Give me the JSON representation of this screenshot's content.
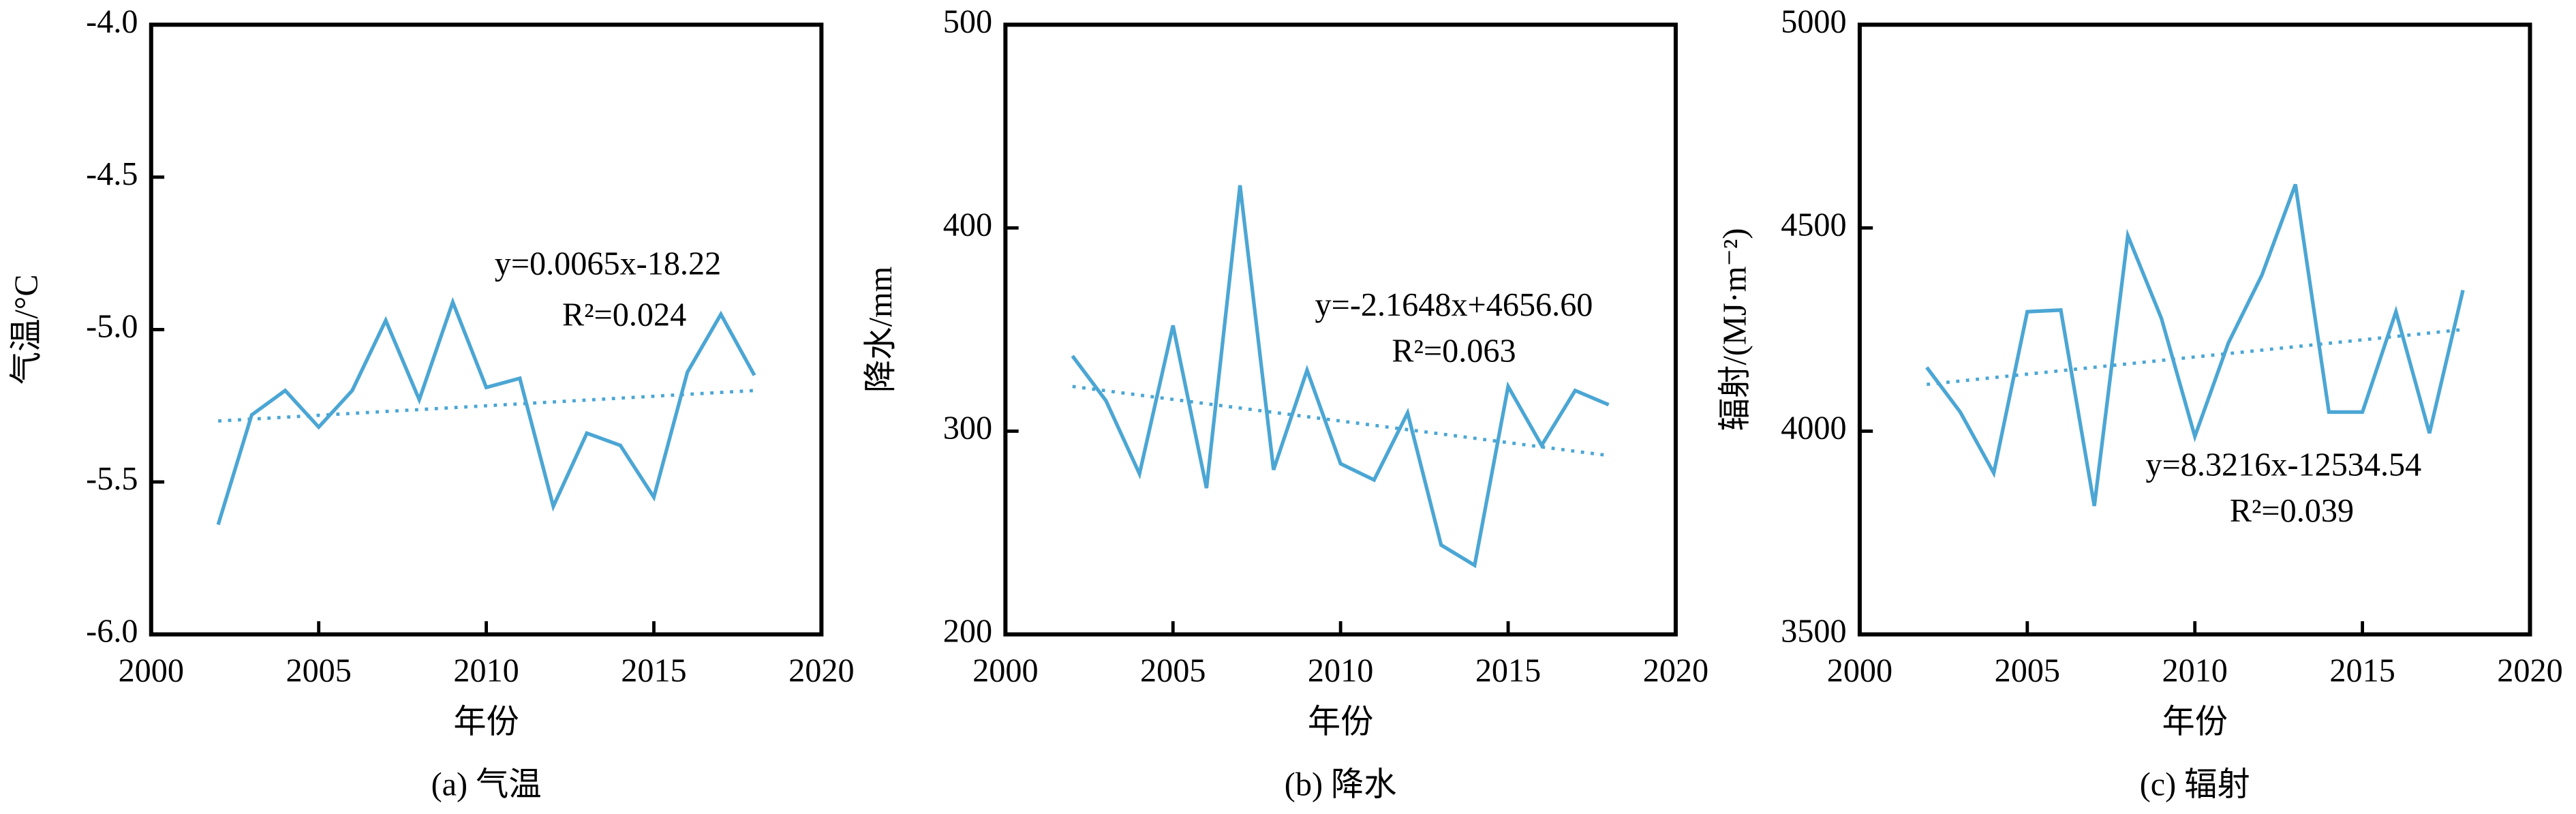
{
  "chart_data": [
    {
      "type": "line",
      "title": "(a) 气温",
      "xlabel": "年份",
      "ylabel": "气温/°C",
      "x": [
        2002,
        2003,
        2004,
        2005,
        2006,
        2007,
        2008,
        2009,
        2010,
        2011,
        2012,
        2013,
        2014,
        2015,
        2016,
        2017,
        2018
      ],
      "series": [
        {
          "color": "#4ba6d4",
          "values": [
            -5.64,
            -5.28,
            -5.2,
            -5.32,
            -5.2,
            -4.97,
            -5.23,
            -4.91,
            -5.19,
            -5.16,
            -5.58,
            -5.34,
            -5.38,
            -5.55,
            -5.14,
            -4.95,
            -5.15
          ]
        }
      ],
      "trend": {
        "color": "#4ba6d4",
        "x": [
          2002,
          2018
        ],
        "values": [
          -5.3,
          -5.2
        ]
      },
      "annotations": [
        "y=0.0065x-18.22",
        "R²=0.024"
      ],
      "xlim": [
        2000,
        2020
      ],
      "xticks": [
        2000,
        2005,
        2010,
        2015,
        2020
      ],
      "ylim": [
        -6,
        -4
      ],
      "yticks": [
        {
          "value": -6,
          "label": "-6.0"
        },
        {
          "value": -5.5,
          "label": "-5.5"
        },
        {
          "value": -5,
          "label": "-5.0"
        },
        {
          "value": -4.5,
          "label": "-4.5"
        },
        {
          "value": -4,
          "label": "-4.0"
        }
      ],
      "grid": false
    },
    {
      "type": "line",
      "title": "(b) 降水",
      "xlabel": "年份",
      "ylabel": "降水/mm",
      "x": [
        2002,
        2003,
        2004,
        2005,
        2006,
        2007,
        2008,
        2009,
        2010,
        2011,
        2012,
        2013,
        2014,
        2015,
        2016,
        2017,
        2018
      ],
      "series": [
        {
          "color": "#4ba6d4",
          "values": [
            337,
            315,
            279,
            352,
            272,
            421,
            281,
            330,
            284,
            276,
            309,
            244,
            234,
            322,
            293,
            320,
            313
          ]
        }
      ],
      "trend": {
        "color": "#4ba6d4",
        "x": [
          2002,
          2018
        ],
        "values": [
          322,
          288
        ]
      },
      "annotations": [
        "y=-2.1648x+4656.60",
        "R²=0.063"
      ],
      "xlim": [
        2000,
        2020
      ],
      "xticks": [
        2000,
        2005,
        2010,
        2015,
        2020
      ],
      "ylim": [
        200,
        500
      ],
      "yticks": [
        200,
        300,
        400,
        500
      ],
      "grid": false
    },
    {
      "type": "line",
      "title": "(c) 辐射",
      "xlabel": "年份",
      "ylabel": "辐射/(MJ·m⁻²)",
      "x": [
        2002,
        2003,
        2004,
        2005,
        2006,
        2007,
        2008,
        2009,
        2010,
        2011,
        2012,
        2013,
        2014,
        2015,
        2016,
        2017,
        2018
      ],
      "series": [
        {
          "color": "#4ba6d4",
          "values": [
            4157,
            4047,
            3897,
            4294,
            4298,
            3816,
            4481,
            4278,
            3987,
            4217,
            4384,
            4607,
            4047,
            4047,
            4294,
            3995,
            4347
          ]
        }
      ],
      "trend": {
        "color": "#4ba6d4",
        "x": [
          2002,
          2018
        ],
        "values": [
          4115,
          4250
        ]
      },
      "annotations": [
        "y=8.3216x-12534.54",
        "R²=0.039"
      ],
      "xlim": [
        2000,
        2020
      ],
      "xticks": [
        2000,
        2005,
        2010,
        2015,
        2020
      ],
      "ylim": [
        3500,
        5000
      ],
      "yticks": [
        3500,
        4000,
        4500,
        5000
      ],
      "grid": false
    }
  ]
}
